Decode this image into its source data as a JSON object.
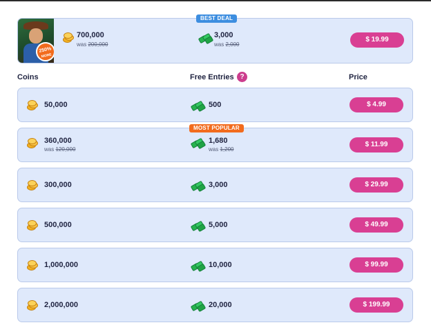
{
  "featured": {
    "badge": "BEST DEAL",
    "promo_percent": "250%",
    "promo_word": "MORE",
    "coins": "700,000",
    "coins_was_label": "was",
    "coins_was": "200,000",
    "entries": "3,000",
    "entries_was_label": "was",
    "entries_was": "2,000",
    "price": "$ 19.99"
  },
  "headers": {
    "coins": "Coins",
    "free_entries": "Free Entries",
    "help": "?",
    "price": "Price"
  },
  "rows": [
    {
      "coins": "50,000",
      "entries": "500",
      "price": "$ 4.99"
    },
    {
      "badge": "MOST POPULAR",
      "coins": "360,000",
      "coins_was_label": "was",
      "coins_was": "120,000",
      "entries": "1,680",
      "entries_was_label": "was",
      "entries_was": "1,200",
      "price": "$ 11.99"
    },
    {
      "coins": "300,000",
      "entries": "3,000",
      "price": "$ 29.99"
    },
    {
      "coins": "500,000",
      "entries": "5,000",
      "price": "$ 49.99"
    },
    {
      "coins": "1,000,000",
      "entries": "10,000",
      "price": "$ 99.99"
    },
    {
      "coins": "2,000,000",
      "entries": "20,000",
      "price": "$ 199.99"
    }
  ],
  "colors": {
    "card_bg": "#dfe9fb",
    "price_button": "#d93f93",
    "best_deal_badge": "#3d8ee0",
    "most_popular_badge": "#f26b1d"
  },
  "icons": {
    "coins": "coin-stack-icon",
    "entries": "green-gem-icon",
    "help": "question-icon"
  }
}
